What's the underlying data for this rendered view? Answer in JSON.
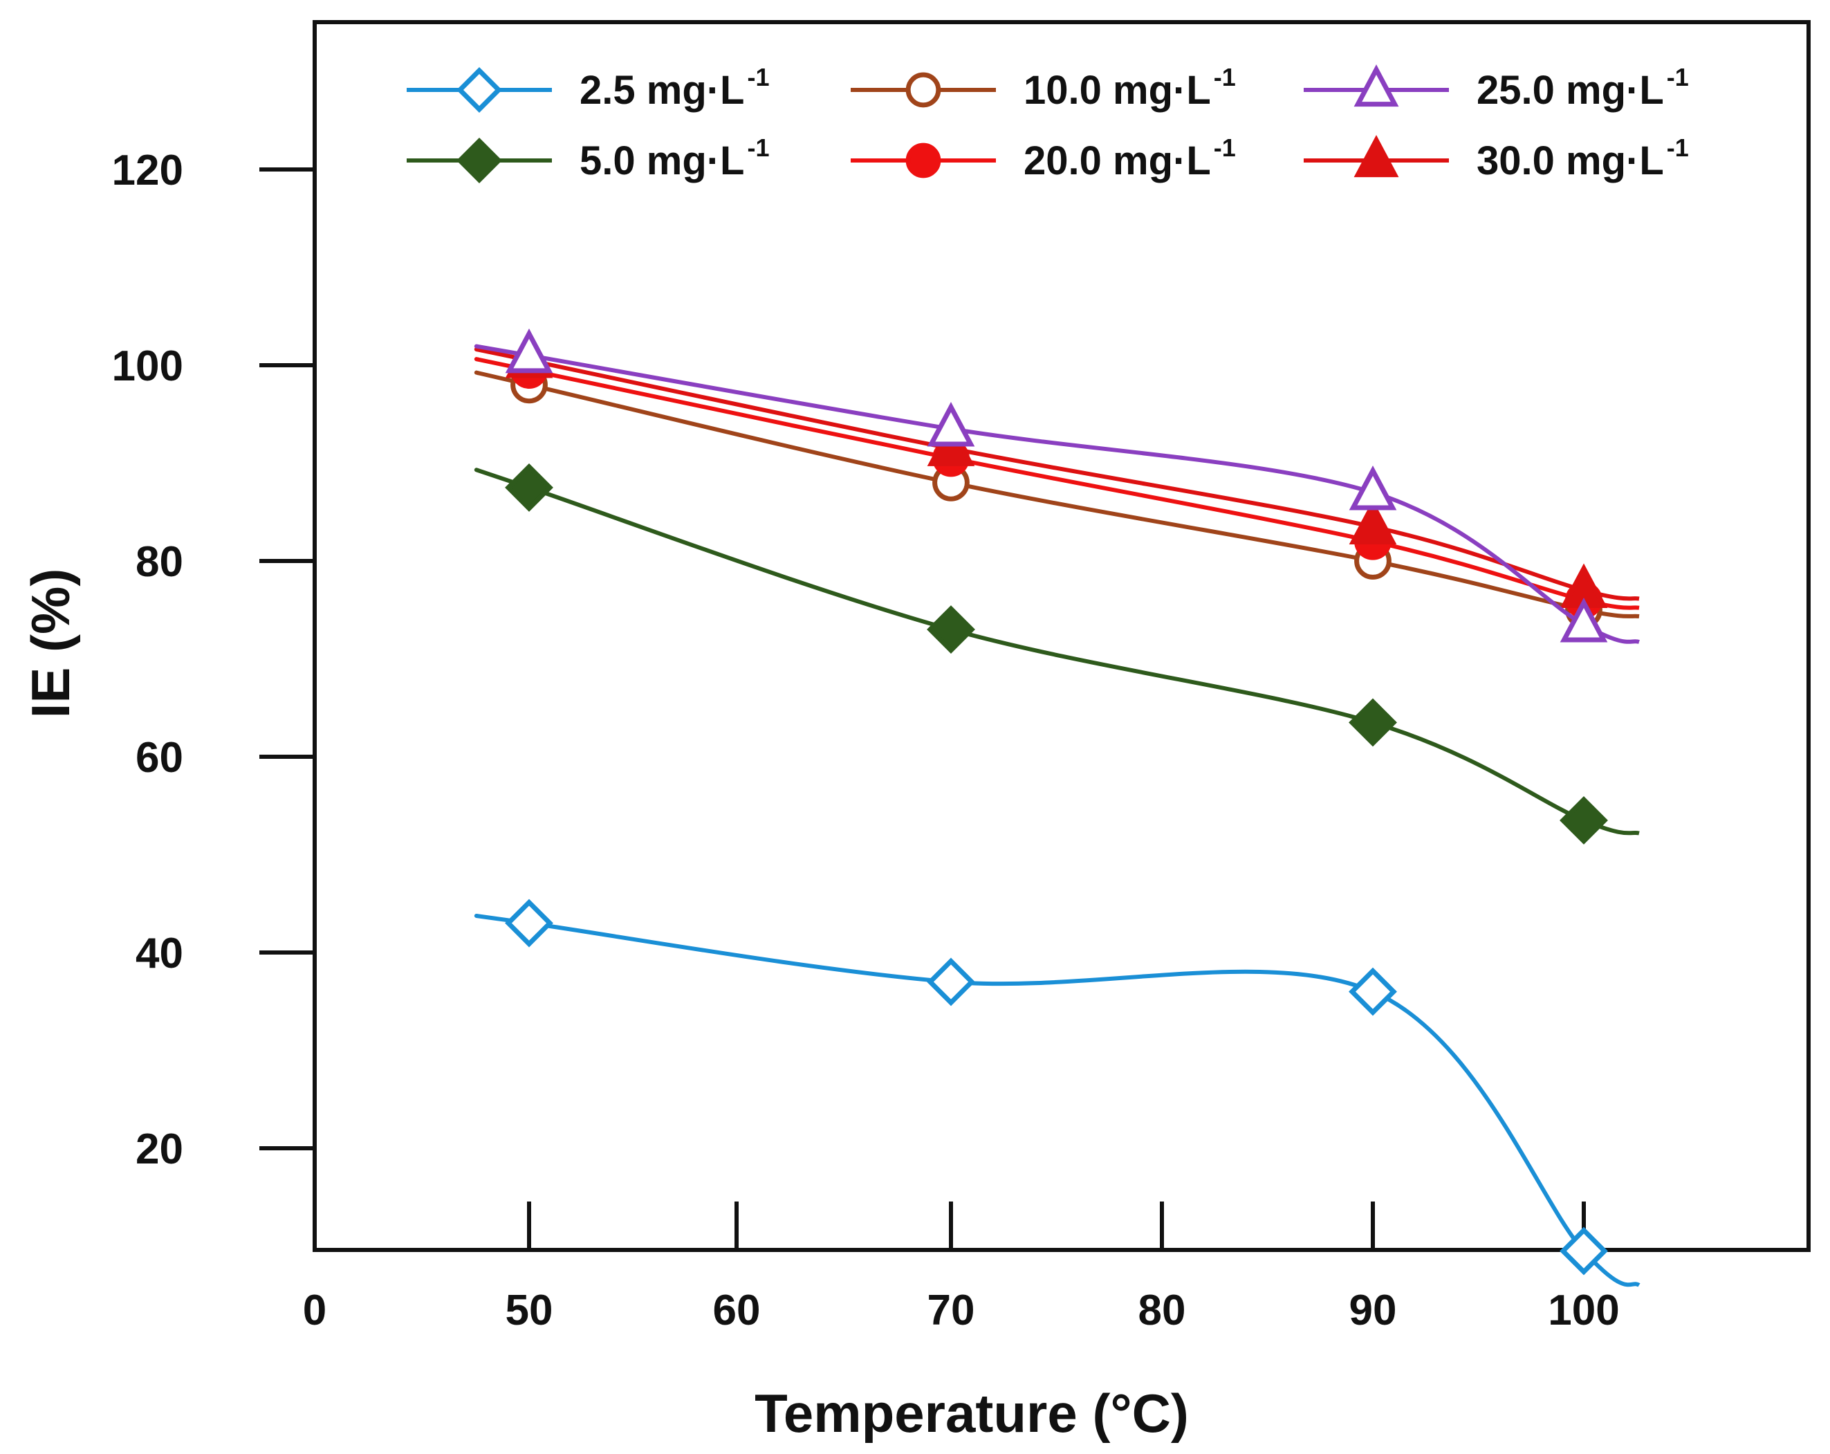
{
  "chart_data": {
    "type": "line",
    "xlabel": "Temperature (°C)",
    "ylabel": "IE (%)",
    "x_ticks": [
      "0",
      "50",
      "60",
      "70",
      "80",
      "90",
      "100"
    ],
    "y_ticks": [
      "20",
      "40",
      "60",
      "80",
      "100",
      "120"
    ],
    "ylim": [
      0,
      120
    ],
    "grid": false,
    "legend_position": "top",
    "x": [
      50,
      70,
      90,
      100
    ],
    "series": [
      {
        "name": "2.5 mg·L",
        "unit_sup": "-1",
        "values": [
          43,
          37,
          36,
          9.5
        ],
        "color": "#1a8fd6",
        "marker": "diamond-open"
      },
      {
        "name": "5.0 mg·L",
        "unit_sup": "-1",
        "values": [
          87.5,
          73,
          63.5,
          53.5
        ],
        "color": "#2e5a1c",
        "marker": "diamond-filled"
      },
      {
        "name": "10.0 mg·L",
        "unit_sup": "-1",
        "values": [
          98,
          88,
          80,
          75
        ],
        "color": "#a0441a",
        "marker": "circle-open"
      },
      {
        "name": "20.0 mg·L",
        "unit_sup": "-1",
        "values": [
          99.5,
          90.5,
          82,
          76
        ],
        "color": "#ee1111",
        "marker": "circle-filled"
      },
      {
        "name": "25.0 mg·L",
        "unit_sup": "-1",
        "values": [
          101,
          93.5,
          87,
          73.5
        ],
        "color": "#8a3fc0",
        "marker": "triangle-open"
      },
      {
        "name": "30.0 mg·L",
        "unit_sup": "-1",
        "values": [
          100.5,
          91.5,
          83.5,
          77
        ],
        "color": "#dd1111",
        "marker": "triangle-filled"
      }
    ]
  }
}
